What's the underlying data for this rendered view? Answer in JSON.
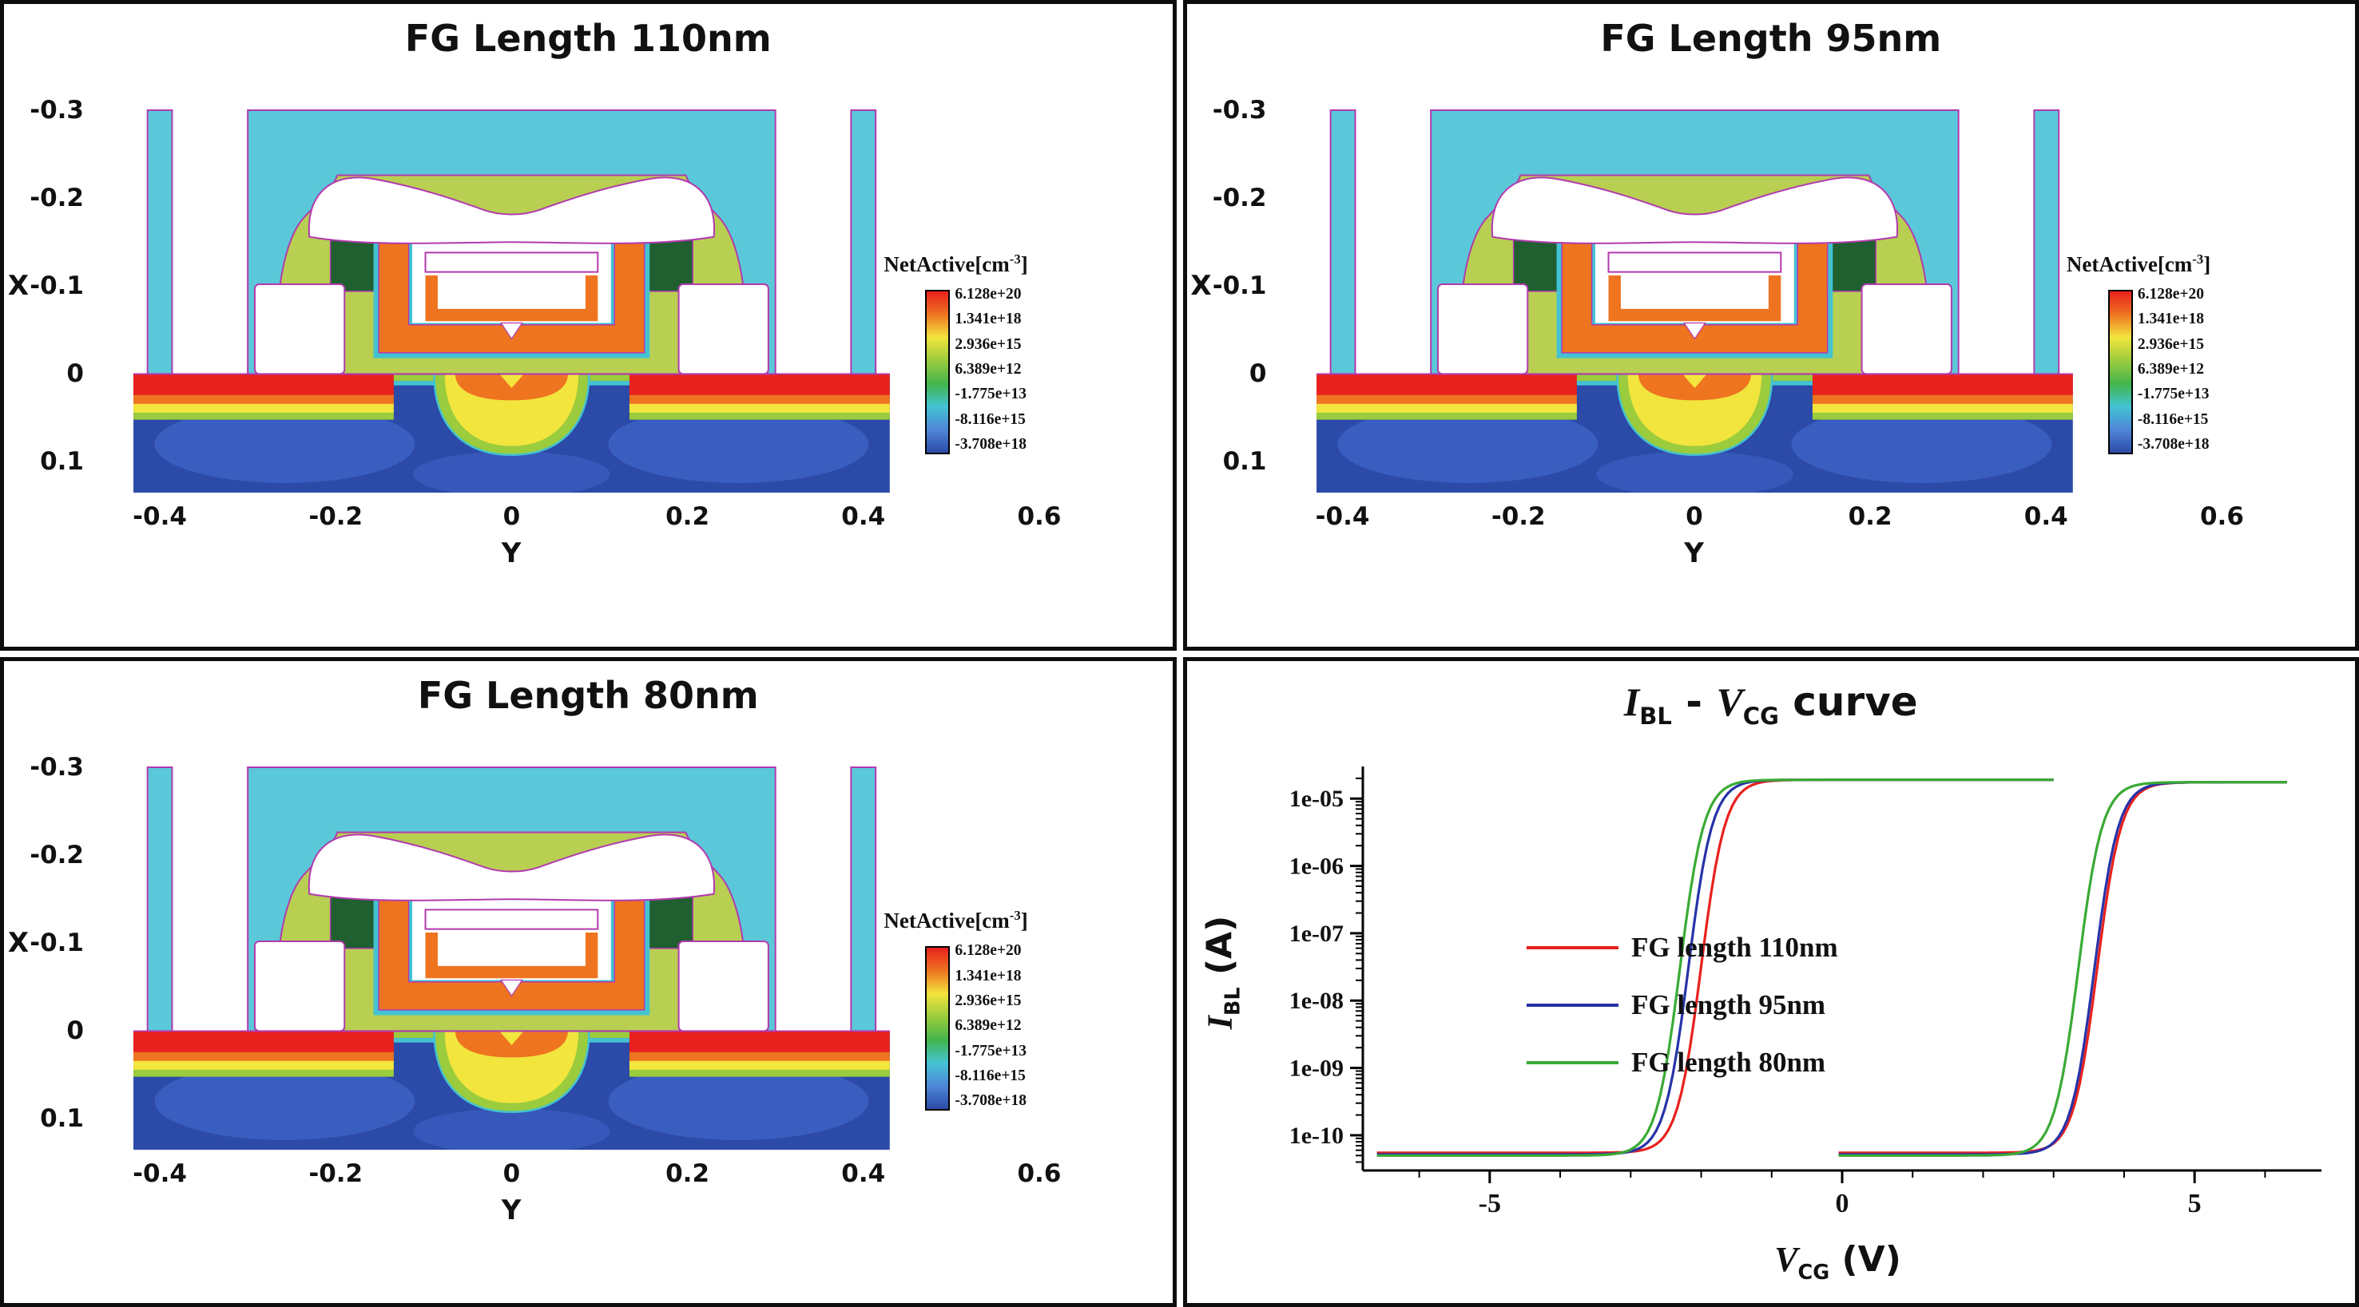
{
  "figure": {
    "panels": [
      {
        "id": "fg110",
        "title": "FG Length 110nm"
      },
      {
        "id": "fg95",
        "title": "FG Length 95nm"
      },
      {
        "id": "fg80",
        "title": "FG Length 80nm"
      }
    ],
    "axes": {
      "x_axis_label": "Y",
      "y_axis_label": "X",
      "x_ticks": [
        "-0.4",
        "-0.2",
        "0",
        "0.2",
        "0.4",
        "0.6"
      ],
      "x_tick_values": [
        -0.4,
        -0.2,
        0,
        0.2,
        0.4,
        0.6
      ],
      "y_ticks": [
        "-0.3",
        "-0.2",
        "-0.1",
        "0",
        "0.1"
      ],
      "y_tick_values": [
        -0.3,
        -0.2,
        -0.1,
        0,
        0.1
      ]
    },
    "colorbar": {
      "label": "NetActive",
      "unit_pre": "[cm",
      "unit_sup": "-3",
      "unit_post": "]",
      "ticks": [
        "6.128e+20",
        "1.341e+18",
        "2.936e+15",
        "6.389e+12",
        "-1.775e+13",
        "-8.116e+15",
        "-3.708e+18"
      ],
      "colors": [
        "#e8211d",
        "#ee7420",
        "#f2e53e",
        "#9bcc3d",
        "#43b54a",
        "#43c3d2",
        "#4f86d8",
        "#2c4aa8"
      ]
    }
  },
  "chart_data": {
    "type": "line",
    "title": {
      "i": "I",
      "i_sub": "BL",
      "sep": " - ",
      "v": "V",
      "v_sub": "CG",
      "rest": " curve"
    },
    "xlabel": {
      "v": "V",
      "v_sub": "CG",
      "rest": " (V)"
    },
    "ylabel": {
      "i": "I",
      "i_sub": "BL",
      "rest": " (A)"
    },
    "xlim": [
      -6.8,
      6.8
    ],
    "x_major_ticks": [
      {
        "value": -5,
        "label": "-5"
      },
      {
        "value": 0,
        "label": "0"
      },
      {
        "value": 5,
        "label": "5"
      }
    ],
    "x_minor_step": 1,
    "y_scale": "log",
    "ylim": [
      3e-11,
      3e-05
    ],
    "y_major_ticks": [
      {
        "value": 1e-05,
        "label": "1e-05"
      },
      {
        "value": 1e-06,
        "label": "1e-06"
      },
      {
        "value": 1e-07,
        "label": "1e-07"
      },
      {
        "value": 1e-08,
        "label": "1e-08"
      },
      {
        "value": 1e-09,
        "label": "1e-09"
      },
      {
        "value": 1e-10,
        "label": "1e-10"
      }
    ],
    "grid": false,
    "legend": {
      "position": "center-left",
      "entries": [
        {
          "label": "FG length 110nm",
          "color": "#e8211d"
        },
        {
          "label": "FG length 95nm",
          "color": "#2733a8"
        },
        {
          "label": "FG length 80nm",
          "color": "#3aaa35"
        }
      ]
    },
    "series": [
      {
        "name": "FG length 110nm",
        "color": "#e8211d",
        "branches": [
          {
            "state": "erased",
            "x_start": -6.6,
            "x_end": 3.05,
            "vth": -2.0,
            "w": 0.17,
            "i_off": 5.5e-11,
            "i_on": 1.9e-05
          },
          {
            "state": "programmed",
            "x_start": -0.05,
            "x_end": 6.35,
            "vth": 3.62,
            "w": 0.17,
            "i_off": 5.5e-11,
            "i_on": 1.75e-05
          }
        ]
      },
      {
        "name": "FG length 95nm",
        "color": "#2733a8",
        "branches": [
          {
            "state": "erased",
            "x_start": -6.6,
            "x_end": 3.05,
            "vth": -2.18,
            "w": 0.17,
            "i_off": 5.2e-11,
            "i_on": 1.9e-05
          },
          {
            "state": "programmed",
            "x_start": -0.05,
            "x_end": 6.35,
            "vth": 3.58,
            "w": 0.17,
            "i_off": 5.2e-11,
            "i_on": 1.75e-05
          }
        ]
      },
      {
        "name": "FG length 80nm",
        "color": "#3aaa35",
        "branches": [
          {
            "state": "erased",
            "x_start": -6.6,
            "x_end": 3.05,
            "vth": -2.3,
            "w": 0.17,
            "i_off": 5e-11,
            "i_on": 1.9e-05
          },
          {
            "state": "programmed",
            "x_start": -0.05,
            "x_end": 6.35,
            "vth": 3.35,
            "w": 0.17,
            "i_off": 5e-11,
            "i_on": 1.75e-05
          }
        ]
      }
    ]
  }
}
